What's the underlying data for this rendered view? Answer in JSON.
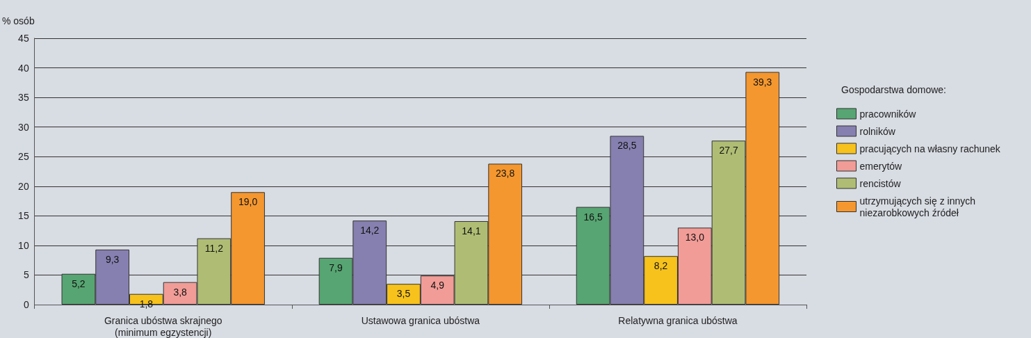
{
  "chart_data": {
    "type": "bar",
    "ylabel": "% osób",
    "legend_title": "Gospodarstwa domowe:",
    "categories": [
      "Granica ubóstwa skrajnego\n(minimum egzystencji)",
      "Ustawowa granica ubóstwa",
      "Relatywna granica ubóstwa"
    ],
    "series": [
      {
        "name": "pracowników",
        "color": "#57a572",
        "values": [
          5.2,
          7.9,
          16.5
        ],
        "value_labels": [
          "5,2",
          "7,9",
          "16,5"
        ]
      },
      {
        "name": "rolników",
        "color": "#8680b0",
        "values": [
          9.3,
          14.2,
          28.5
        ],
        "value_labels": [
          "9,3",
          "14,2",
          "28,5"
        ]
      },
      {
        "name": "pracujących na własny rachunek",
        "color": "#f7c21c",
        "values": [
          1.8,
          3.5,
          8.2
        ],
        "value_labels": [
          "1,8",
          "3,5",
          "8,2"
        ]
      },
      {
        "name": "emerytów",
        "color": "#f19c97",
        "values": [
          3.8,
          4.9,
          13.0
        ],
        "value_labels": [
          "3,8",
          "4,9",
          "13,0"
        ]
      },
      {
        "name": "rencistów",
        "color": "#afbd74",
        "values": [
          11.2,
          14.1,
          27.7
        ],
        "value_labels": [
          "11,2",
          "14,1",
          "27,7"
        ]
      },
      {
        "name": "utrzymujących się z innych\nniezarobkowych źródeł",
        "color": "#f4972f",
        "values": [
          19.0,
          23.8,
          39.3
        ],
        "value_labels": [
          "19,0",
          "23,8",
          "39,3"
        ]
      }
    ],
    "ylim": [
      0,
      45
    ],
    "yticks": [
      0,
      5,
      10,
      15,
      20,
      25,
      30,
      35,
      40,
      45
    ],
    "grid": "y",
    "legend": "right"
  }
}
